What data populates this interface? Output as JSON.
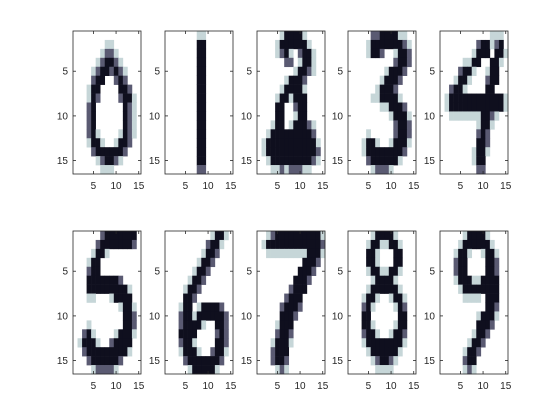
{
  "chart_data": [
    {
      "type": "heatmap",
      "panel": "digit-0",
      "grid_size": [
        16,
        16
      ],
      "xlim": [
        0.5,
        15.5
      ],
      "ylim": [
        0.5,
        16.5
      ],
      "xticks": [
        5,
        10,
        15
      ],
      "yticks": [
        5,
        10,
        15
      ],
      "colormap": "bone",
      "x_range": [
        1,
        15
      ]
    },
    {
      "type": "heatmap",
      "panel": "digit-1",
      "grid_size": [
        16,
        16
      ],
      "xlim": [
        0.5,
        15.5
      ],
      "ylim": [
        0.5,
        16.5
      ],
      "xticks": [
        5,
        10,
        15
      ],
      "yticks": [
        5,
        10,
        15
      ],
      "colormap": "bone"
    },
    {
      "type": "heatmap",
      "panel": "digit-2",
      "grid_size": [
        16,
        16
      ],
      "xlim": [
        0.5,
        15.5
      ],
      "ylim": [
        0.5,
        16.5
      ],
      "xticks": [
        5,
        10,
        15
      ],
      "yticks": [
        5,
        10,
        15
      ],
      "colormap": "bone"
    },
    {
      "type": "heatmap",
      "panel": "digit-3",
      "grid_size": [
        16,
        16
      ],
      "xlim": [
        0.5,
        15.5
      ],
      "ylim": [
        0.5,
        16.5
      ],
      "xticks": [
        5,
        10,
        15
      ],
      "yticks": [
        5,
        10,
        15
      ],
      "colormap": "bone"
    },
    {
      "type": "heatmap",
      "panel": "digit-4",
      "grid_size": [
        16,
        16
      ],
      "xlim": [
        0.5,
        15.5
      ],
      "ylim": [
        0.5,
        16.5
      ],
      "xticks": [
        5,
        10,
        15
      ],
      "yticks": [
        5,
        10,
        15
      ],
      "colormap": "bone"
    },
    {
      "type": "heatmap",
      "panel": "digit-5",
      "grid_size": [
        16,
        16
      ],
      "xlim": [
        0.5,
        15.5
      ],
      "ylim": [
        0.5,
        16.5
      ],
      "xticks": [
        5,
        10,
        15
      ],
      "yticks": [
        5,
        10,
        15
      ],
      "colormap": "bone"
    },
    {
      "type": "heatmap",
      "panel": "digit-6",
      "grid_size": [
        16,
        16
      ],
      "xlim": [
        0.5,
        15.5
      ],
      "ylim": [
        0.5,
        16.5
      ],
      "xticks": [
        5,
        10,
        15
      ],
      "yticks": [
        5,
        10,
        15
      ],
      "colormap": "bone"
    },
    {
      "type": "heatmap",
      "panel": "digit-7",
      "grid_size": [
        16,
        16
      ],
      "xlim": [
        0.5,
        15.5
      ],
      "ylim": [
        0.5,
        16.5
      ],
      "xticks": [
        5,
        10,
        15
      ],
      "yticks": [
        5,
        10,
        15
      ],
      "colormap": "bone"
    },
    {
      "type": "heatmap",
      "panel": "digit-8",
      "grid_size": [
        16,
        16
      ],
      "xlim": [
        0.5,
        15.5
      ],
      "ylim": [
        0.5,
        16.5
      ],
      "xticks": [
        5,
        10,
        15
      ],
      "yticks": [
        5,
        10,
        15
      ],
      "colormap": "bone"
    },
    {
      "type": "heatmap",
      "panel": "digit-9",
      "grid_size": [
        16,
        16
      ],
      "xlim": [
        0.5,
        15.5
      ],
      "ylim": [
        0.5,
        16.5
      ],
      "xticks": [
        5,
        10,
        15
      ],
      "yticks": [
        5,
        10,
        15
      ],
      "colormap": "bone"
    }
  ],
  "digits": [
    [
      "0000000000000000",
      "0000000110000000",
      "0000001221000000",
      "0000012332100000",
      "0000123323210000",
      "0000233002320000",
      "0001330000332000",
      "0001320000233100",
      "0002300000032100",
      "0002300000032100",
      "0002300000032100",
      "0002310000132100",
      "0001331001332000",
      "0000233333320000",
      "0000012332100000",
      "0000001110000000"
    ],
    [
      "0000000110000000",
      "0000000330000000",
      "0000000330000000",
      "0000000330000000",
      "0000000330000000",
      "0000000330000000",
      "0000000330000000",
      "0000000330000000",
      "0000000330000000",
      "0000000330000000",
      "0000000330000000",
      "0000000330000000",
      "0000000330000000",
      "0000000330000000",
      "0000000330000000",
      "0000000220000000"
    ],
    [
      "0000013333100000",
      "0000133333310000",
      "0000123102331000",
      "0000002201331000",
      "0000000013321000",
      "0000001333200000",
      "0000013333100000",
      "0000133133300000",
      "0000330023300000",
      "0000330013300000",
      "0001330133321000",
      "0013333333332000",
      "0133333333333100",
      "0133333333333200",
      "0013333333332100",
      "0001121222110000"
    ],
    [
      "0000022333311000",
      "0000133333332100",
      "0000133200133200",
      "0000000000233200",
      "0000000013332000",
      "0000000133320000",
      "0000001333200000",
      "0000011333310000",
      "0000000113332000",
      "0000000001333100",
      "0000000000233200",
      "0000100000233200",
      "0001331001333100",
      "0001333333332000",
      "0000233333310000",
      "0000012221000000"
    ],
    [
      "0000000000011100",
      "0000000023312300",
      "0000000133303310",
      "0000011330033100",
      "0000233100133000",
      "0001331000233000",
      "0023310000330000",
      "0133333333333310",
      "0133333333333310",
      "0011111113321000",
      "0000000013310000",
      "0000000023200000",
      "0000000033200000",
      "0000000133100000",
      "0000000133000000",
      "0000000022000000"
    ],
    [
      "0000002333333300",
      "0000023333333200",
      "0000133100000000",
      "0001330000000000",
      "0002330000000000",
      "0003333333200000",
      "0003333333331000",
      "0001100013333000",
      "0000000000133100",
      "0000000000033200",
      "0001000000033200",
      "0023100001333100",
      "0133310023333000",
      "0023333333331000",
      "0002333333200000",
      "0000122221000000"
    ],
    [
      "0000000000133100",
      "0000000002331000",
      "0000000013320000",
      "0000000133200000",
      "0000001332000000",
      "0000013320000000",
      "0000133200000000",
      "0000332000000000",
      "0001330133332000",
      "0002331333333200",
      "0002333310033200",
      "0003333000023200",
      "0002331000033200",
      "0001333100233100",
      "0000233333332000",
      "0000013333310000"
    ],
    [
      "0012333333333310",
      "0133333333333320",
      "0011111111133310",
      "0000000000333200",
      "0000000003332000",
      "0000000033320000",
      "0000000233300000",
      "0000002333000000",
      "0000023332000000",
      "0000033320000000",
      "0000133300000000",
      "0000233200000000",
      "0001333100000000",
      "0002333000000000",
      "0002332000000000",
      "0000121000000000"
    ],
    [
      "0000013333100000",
      "0000133113310000",
      "0000331000330000",
      "0000331000330000",
      "0000133113310000",
      "0000013333100000",
      "0000133333310000",
      "0001331001331000",
      "0002310000132000",
      "0003300000033000",
      "0003310000133000",
      "0002331001332000",
      "0001333333331000",
      "0000133333310000",
      "0000012332100000",
      "0000001111000000"
    ],
    [
      "0000013333100000",
      "0000133333310000",
      "0001331001331000",
      "0002330000332000",
      "0002330000332000",
      "0001333113333000",
      "0000133333333000",
      "0000011110333000",
      "0000000000332000",
      "0000000013331000",
      "0000000033320000",
      "0000000133200000",
      "0000001332000000",
      "0000013320000000",
      "0000023300000000",
      "0000012100000000"
    ]
  ]
}
